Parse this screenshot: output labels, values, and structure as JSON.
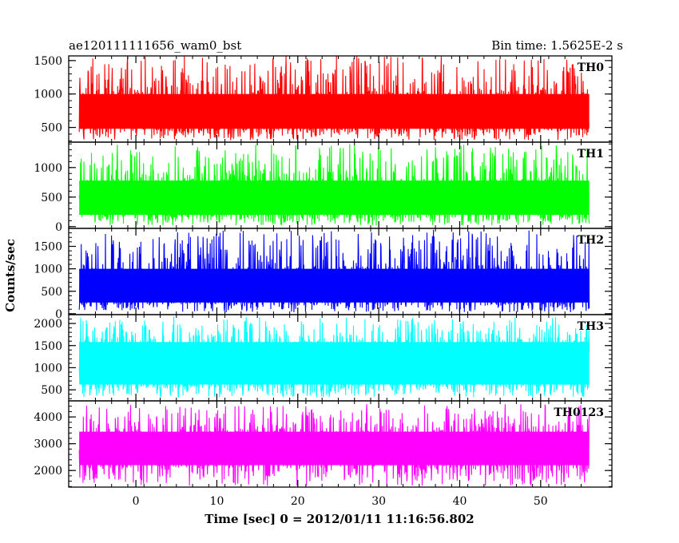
{
  "header": {
    "left_title": "ae120111111656_wam0_bst",
    "right_title": "Bin time: 1.5625E-2 s"
  },
  "chart_data": {
    "type": "line",
    "xlabel": "Time [sec] 0 = 2012/01/11 11:16:56.802",
    "ylabel": "Counts/sec",
    "xlim": [
      -8.3,
      58.8
    ],
    "x_data_range": [
      -7.0,
      56.0
    ],
    "xticks": [
      0,
      10,
      20,
      30,
      40,
      50
    ],
    "grid": false,
    "panels": [
      {
        "name": "TH0",
        "color": "#ff0000",
        "ylim": [
          280,
          1570
        ],
        "yticks": [
          500,
          1000,
          1500
        ],
        "band": {
          "low": 480,
          "high": 1000
        },
        "min_approx": 310,
        "max_approx": 1570
      },
      {
        "name": "TH1",
        "color": "#00ff00",
        "ylim": [
          -30,
          1430
        ],
        "yticks": [
          0,
          500,
          1000
        ],
        "band": {
          "low": 200,
          "high": 780
        },
        "min_approx": 20,
        "max_approx": 1400
      },
      {
        "name": "TH2",
        "color": "#0000ff",
        "ylim": [
          -20,
          1900
        ],
        "yticks": [
          0,
          500,
          1000,
          1500
        ],
        "band": {
          "low": 250,
          "high": 1000
        },
        "min_approx": 30,
        "max_approx": 1880
      },
      {
        "name": "TH3",
        "color": "#00ffff",
        "ylim": [
          250,
          2200
        ],
        "yticks": [
          500,
          1000,
          1500,
          2000
        ],
        "band": {
          "low": 620,
          "high": 1580
        },
        "min_approx": 330,
        "max_approx": 2150
      },
      {
        "name": "TH0123",
        "color": "#ff00ff",
        "ylim": [
          1380,
          4600
        ],
        "yticks": [
          2000,
          3000,
          4000
        ],
        "band": {
          "low": 2200,
          "high": 3450
        },
        "min_approx": 1420,
        "max_approx": 4500
      }
    ]
  }
}
